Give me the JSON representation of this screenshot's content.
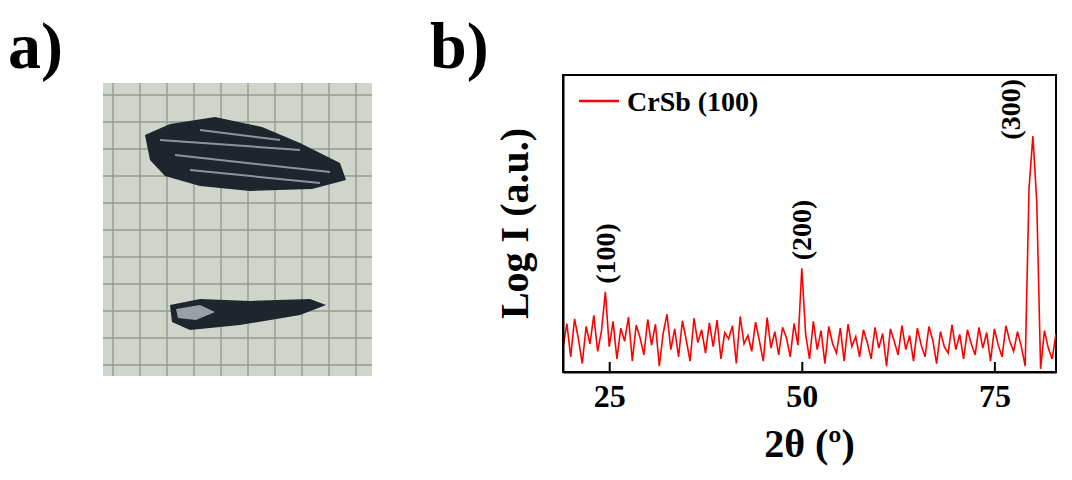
{
  "panel_labels": [
    "a)",
    "b)"
  ],
  "chart_data": {
    "type": "line",
    "x_label": "2θ (º)",
    "y_label": "Log I (a.u.)",
    "x": [
      19,
      19.5,
      20,
      20.5,
      21,
      21.5,
      22,
      22.5,
      23,
      23.5,
      24,
      24.5,
      25,
      25.5,
      26,
      26.5,
      27,
      27.5,
      28,
      28.5,
      29,
      29.5,
      30,
      30.5,
      31,
      31.5,
      32,
      32.5,
      33,
      33.5,
      34,
      34.5,
      35,
      35.5,
      36,
      36.5,
      37,
      37.5,
      38,
      38.5,
      39,
      39.5,
      40,
      40.5,
      41,
      41.5,
      42,
      42.5,
      43,
      43.5,
      44,
      44.5,
      45,
      45.5,
      46,
      46.5,
      47,
      47.5,
      48,
      48.5,
      49,
      49.5,
      50,
      50.5,
      51,
      51.5,
      52,
      52.5,
      53,
      53.5,
      54,
      54.5,
      55,
      55.5,
      56,
      56.5,
      57,
      57.5,
      58,
      58.5,
      59,
      59.5,
      60,
      60.5,
      61,
      61.5,
      62,
      62.5,
      63,
      63.5,
      64,
      64.5,
      65,
      65.5,
      66,
      66.5,
      67,
      67.5,
      68,
      68.5,
      69,
      69.5,
      70,
      70.5,
      71,
      71.5,
      72,
      72.5,
      73,
      73.5,
      74,
      74.5,
      75,
      75.5,
      76,
      76.5,
      77,
      77.5,
      78,
      78.5,
      79,
      79.5,
      80,
      80.5,
      81,
      81.5,
      82,
      82.5,
      83
    ],
    "series": [
      {
        "name": "CrSb (100)",
        "color": "#ff0000",
        "values": [
          2.1,
          4.5,
          1.6,
          5.2,
          2.8,
          1.3,
          4.1,
          2.4,
          5.8,
          1.9,
          3.6,
          12,
          2.2,
          4.8,
          1.5,
          3.9,
          2.6,
          5.5,
          1.4,
          4.3,
          2.9,
          1.7,
          5.1,
          2.3,
          4.4,
          1.2,
          3.3,
          6.0,
          2.0,
          3.8,
          1.6,
          4.9,
          2.7,
          1.4,
          5.3,
          2.5,
          3.7,
          1.8,
          4.6,
          2.2,
          5.0,
          1.5,
          3.4,
          2.8,
          4.2,
          1.3,
          5.6,
          2.4,
          3.1,
          1.9,
          4.7,
          2.6,
          1.4,
          5.4,
          2.1,
          3.5,
          1.7,
          4.0,
          2.9,
          1.6,
          4.5,
          2.3,
          25,
          3.2,
          1.5,
          4.8,
          2.0,
          3.6,
          1.3,
          4.1,
          2.4,
          1.8,
          3.9,
          1.4,
          4.4,
          2.2,
          3.0,
          1.6,
          3.7,
          2.5,
          1.5,
          4.0,
          2.1,
          3.3,
          1.2,
          3.8,
          2.6,
          1.7,
          4.2,
          2.0,
          3.1,
          1.4,
          3.9,
          2.3,
          1.6,
          4.1,
          2.7,
          1.3,
          3.5,
          2.2,
          1.8,
          4.3,
          2.0,
          3.2,
          1.5,
          3.7,
          2.4,
          1.7,
          4.0,
          2.1,
          3.4,
          1.4,
          3.8,
          2.3,
          1.6,
          4.2,
          2.6,
          1.9,
          3.5,
          2.2,
          1.2,
          300,
          1500,
          200,
          1.1,
          3.6,
          2.1,
          1.5,
          3.3
        ]
      }
    ],
    "xlim": [
      19,
      83
    ],
    "xticks": [
      25,
      50,
      75
    ],
    "ylim": [
      1,
      10000
    ],
    "yticks": [],
    "log": "y",
    "tick_labels": "x",
    "grid": false,
    "legend": "upper left",
    "annotations": [
      {
        "text": "(100)",
        "x": 24.5,
        "y": 12
      },
      {
        "text": "(200)",
        "x": 50,
        "y": 25
      },
      {
        "text": "(300)",
        "x": 80,
        "y": 1500
      }
    ]
  }
}
